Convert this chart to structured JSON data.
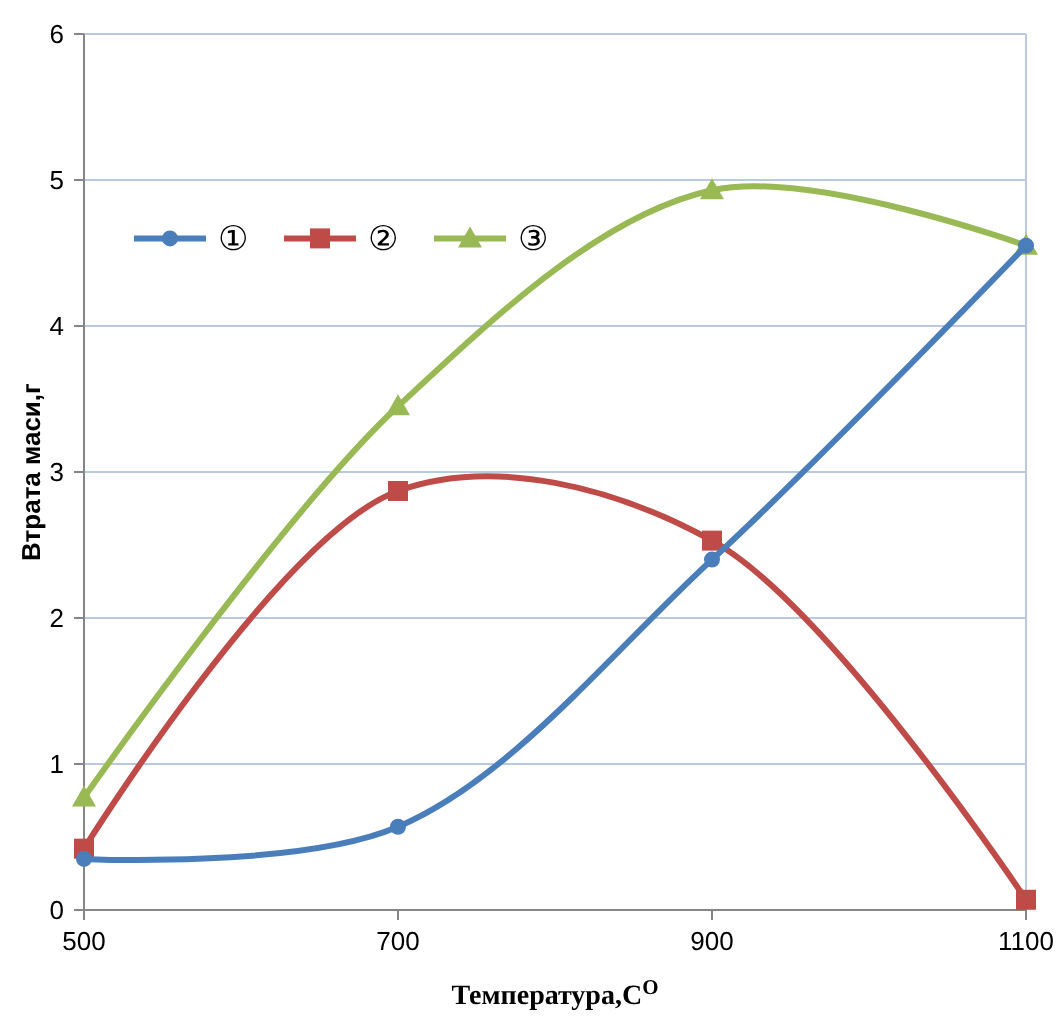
{
  "chart_data": {
    "type": "line",
    "xlabel": "Температура,С$^{O}$",
    "ylabel": "Втрата маси,г",
    "x": [
      500,
      700,
      900,
      1100
    ],
    "xlim": [
      500,
      1100
    ],
    "xticks": [
      500,
      700,
      900,
      1100
    ],
    "ylim": [
      0,
      6
    ],
    "yticks": [
      0,
      1,
      2,
      3,
      4,
      5,
      6
    ],
    "grid": "y",
    "legend": "top left",
    "line_style": "solid",
    "series": [
      {
        "name": "①",
        "color": "#4a7ebb",
        "marker": "circle",
        "values": [
          0.35,
          0.57,
          2.4,
          4.55
        ]
      },
      {
        "name": "②",
        "color": "#be4b48",
        "marker": "square",
        "values": [
          0.42,
          2.87,
          2.53,
          0.07
        ]
      },
      {
        "name": "③",
        "color": "#98b954",
        "marker": "triangle",
        "values": [
          0.77,
          3.45,
          4.93,
          4.55
        ]
      }
    ]
  }
}
